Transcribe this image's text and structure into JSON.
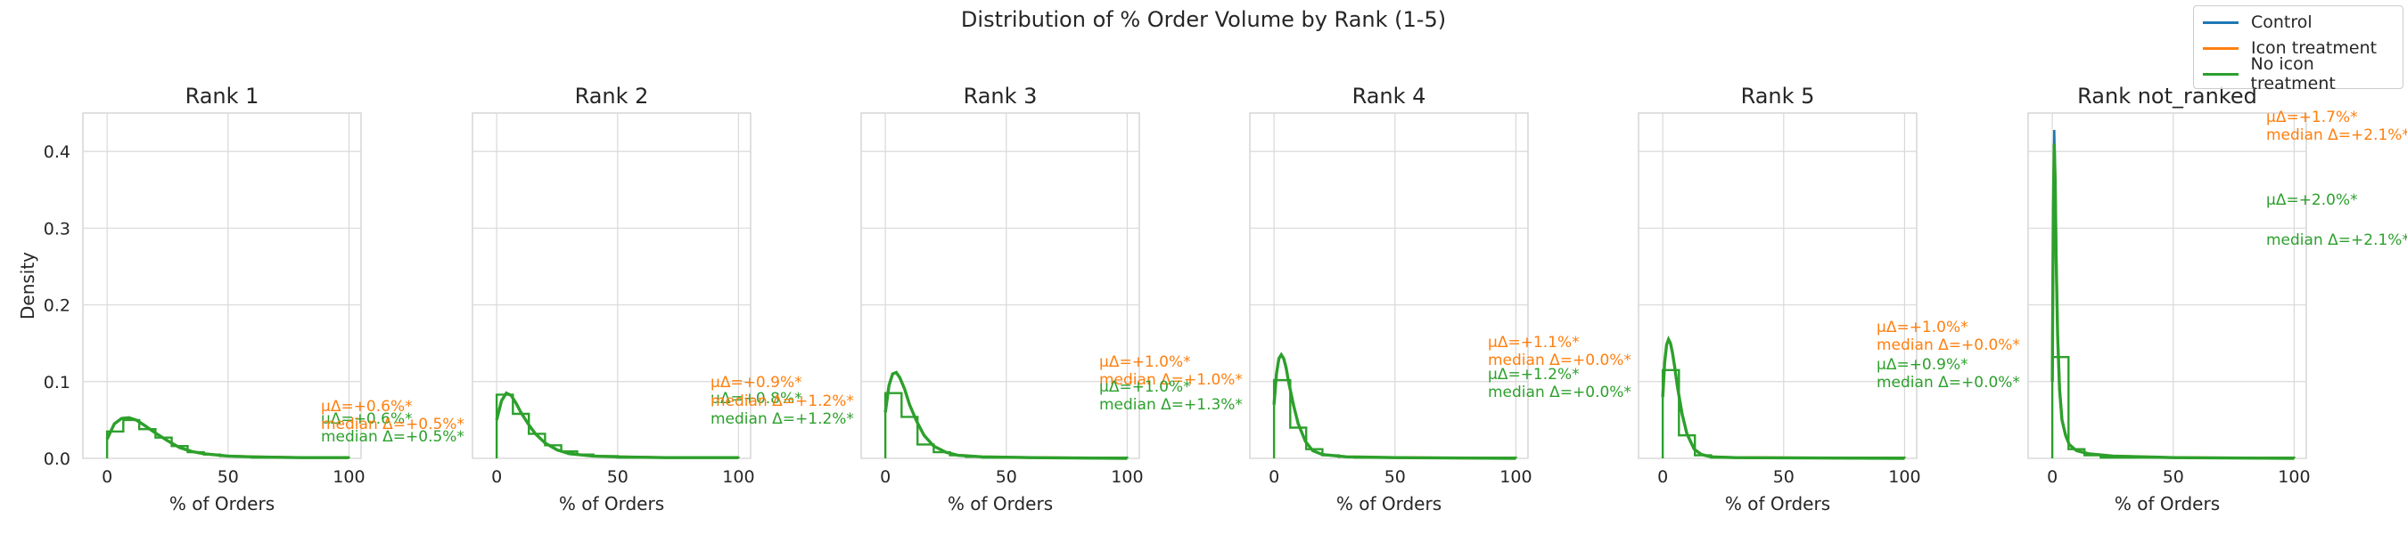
{
  "title": "Distribution of % Order Volume by Rank (1-5)",
  "legend": [
    {
      "label": "Control",
      "color": "#1f77b4"
    },
    {
      "label": "Icon treatment",
      "color": "#ff7f0e"
    },
    {
      "label": "No icon treatment",
      "color": "#2ca02c"
    }
  ],
  "chart_data": {
    "type": "line",
    "title": "Distribution of % Order Volume by Rank (1-5)",
    "ylabel": "Density",
    "xlabel": "% of Orders",
    "xlim": [
      -10,
      105
    ],
    "ylim": [
      0,
      0.45
    ],
    "x_ticks": [
      0,
      50,
      100
    ],
    "y_ticks": [
      0.0,
      0.1,
      0.2,
      0.3,
      0.4
    ],
    "x_tick_labels": [
      "0",
      "50",
      "100"
    ],
    "y_tick_labels": [
      "0.0",
      "0.1",
      "0.2",
      "0.3",
      "0.4"
    ],
    "grid": true,
    "legend_position": "top-right",
    "series_colors": {
      "Control": "#1f77b4",
      "Icon treatment": "#ff7f0e",
      "No icon treatment": "#2ca02c"
    },
    "panels": [
      {
        "title": "Rank 1",
        "kde": {
          "x": [
            0,
            3,
            6,
            9,
            12,
            15,
            20,
            25,
            30,
            35,
            40,
            50,
            60,
            80,
            100
          ],
          "y": [
            0.025,
            0.045,
            0.052,
            0.053,
            0.05,
            0.044,
            0.033,
            0.023,
            0.014,
            0.009,
            0.006,
            0.003,
            0.002,
            0.001,
            0.001
          ]
        },
        "hist": {
          "edges": [
            0,
            6.7,
            13.3,
            20,
            26.7,
            33.3,
            40,
            46.7,
            53.3,
            60,
            100
          ],
          "values": [
            0.035,
            0.05,
            0.038,
            0.027,
            0.016,
            0.008,
            0.005,
            0.003,
            0.002,
            0.001
          ]
        },
        "annotations": [
          {
            "text": "μΔ=+0.6%*",
            "color": "#ff7f0e"
          },
          {
            "text": "μΔ=+0.6%*",
            "color": "#2ca02c"
          },
          {
            "text": "median Δ=+0.5%*",
            "color": "#ff7f0e"
          },
          {
            "text": "median Δ=+0.5%*",
            "color": "#2ca02c"
          }
        ]
      },
      {
        "title": "Rank 2",
        "kde": {
          "x": [
            0,
            2,
            4,
            6,
            8,
            10,
            13,
            16,
            20,
            25,
            30,
            40,
            50,
            70,
            100
          ],
          "y": [
            0.05,
            0.075,
            0.085,
            0.082,
            0.072,
            0.06,
            0.045,
            0.032,
            0.02,
            0.011,
            0.006,
            0.003,
            0.002,
            0.001,
            0.001
          ]
        },
        "hist": {
          "edges": [
            0,
            6.7,
            13.3,
            20,
            26.7,
            33.3,
            40,
            50,
            100
          ],
          "values": [
            0.083,
            0.058,
            0.032,
            0.017,
            0.009,
            0.005,
            0.003,
            0.001
          ]
        },
        "annotations": [
          {
            "text": "μΔ=+0.9%*",
            "color": "#ff7f0e"
          },
          {
            "text": "μΔ=+0.8%*",
            "color": "#2ca02c"
          },
          {
            "text": "median Δ=+1.2%*",
            "color": "#ff7f0e"
          },
          {
            "text": "median Δ=+1.2%*",
            "color": "#2ca02c"
          }
        ]
      },
      {
        "title": "Rank 3",
        "kde": {
          "x": [
            0,
            1.5,
            3,
            4.5,
            6,
            8,
            10,
            13,
            16,
            20,
            25,
            30,
            40,
            60,
            100
          ],
          "y": [
            0.06,
            0.095,
            0.11,
            0.112,
            0.105,
            0.09,
            0.07,
            0.048,
            0.03,
            0.016,
            0.008,
            0.004,
            0.002,
            0.001,
            0.0
          ]
        },
        "hist": {
          "edges": [
            0,
            6.7,
            13.3,
            20,
            26.7,
            33.3,
            40,
            100
          ],
          "values": [
            0.085,
            0.054,
            0.018,
            0.008,
            0.004,
            0.002,
            0.001
          ]
        },
        "annotations": [
          {
            "text": "μΔ=+1.0%*",
            "color": "#ff7f0e"
          },
          {
            "text": "median Δ=+1.0%*",
            "color": "#ff7f0e"
          },
          {
            "text": "μΔ=+1.0%*",
            "color": "#2ca02c"
          },
          {
            "text": "median Δ=+1.3%*",
            "color": "#2ca02c"
          }
        ]
      },
      {
        "title": "Rank 4",
        "kde": {
          "x": [
            0,
            1,
            2,
            3,
            4,
            5,
            6,
            8,
            10,
            13,
            16,
            20,
            30,
            50,
            100
          ],
          "y": [
            0.07,
            0.11,
            0.13,
            0.135,
            0.13,
            0.118,
            0.1,
            0.07,
            0.045,
            0.022,
            0.01,
            0.005,
            0.002,
            0.001,
            0.0
          ]
        },
        "hist": {
          "edges": [
            0,
            6.7,
            13.3,
            20,
            26.7,
            33.3,
            100
          ],
          "values": [
            0.102,
            0.04,
            0.012,
            0.004,
            0.002,
            0.001
          ]
        },
        "annotations": [
          {
            "text": "μΔ=+1.1%*",
            "color": "#ff7f0e"
          },
          {
            "text": "median Δ=+0.0%*",
            "color": "#ff7f0e"
          },
          {
            "text": "μΔ=+1.2%*",
            "color": "#2ca02c"
          },
          {
            "text": "median Δ=+0.0%*",
            "color": "#2ca02c"
          }
        ]
      },
      {
        "title": "Rank 5",
        "kde": {
          "x": [
            0,
            0.8,
            1.6,
            2.4,
            3.2,
            4,
            5,
            6,
            8,
            10,
            13,
            16,
            20,
            30,
            100
          ],
          "y": [
            0.08,
            0.125,
            0.148,
            0.155,
            0.15,
            0.138,
            0.118,
            0.095,
            0.058,
            0.032,
            0.012,
            0.005,
            0.002,
            0.001,
            0.0
          ]
        },
        "hist": {
          "edges": [
            0,
            6.7,
            13.3,
            20,
            100
          ],
          "values": [
            0.115,
            0.03,
            0.004,
            0.001
          ]
        },
        "annotations": [
          {
            "text": "μΔ=+1.0%*",
            "color": "#ff7f0e"
          },
          {
            "text": "median Δ=+0.0%*",
            "color": "#ff7f0e"
          },
          {
            "text": "μΔ=+0.9%*",
            "color": "#2ca02c"
          },
          {
            "text": "median Δ=+0.0%*",
            "color": "#2ca02c"
          }
        ]
      },
      {
        "title": "Rank not_ranked",
        "control_peak": 0.428,
        "kde": {
          "x": [
            0,
            0.4,
            0.8,
            1.2,
            1.6,
            2.2,
            3,
            4,
            5.5,
            7,
            10,
            15,
            25,
            50,
            100
          ],
          "y": [
            0.1,
            0.32,
            0.41,
            0.36,
            0.26,
            0.16,
            0.09,
            0.05,
            0.03,
            0.018,
            0.01,
            0.006,
            0.003,
            0.001,
            0.0
          ]
        },
        "hist": {
          "edges": [
            0,
            6.7,
            13.3,
            20,
            100
          ],
          "values": [
            0.132,
            0.012,
            0.004,
            0.001
          ]
        },
        "annotations": [
          {
            "text": "μΔ=+1.7%*",
            "color": "#ff7f0e"
          },
          {
            "text": "median Δ=+2.1%*",
            "color": "#ff7f0e"
          },
          {
            "text": "μΔ=+2.0%*",
            "color": "#2ca02c"
          },
          {
            "text": "median Δ=+2.1%*",
            "color": "#2ca02c"
          }
        ]
      }
    ]
  }
}
